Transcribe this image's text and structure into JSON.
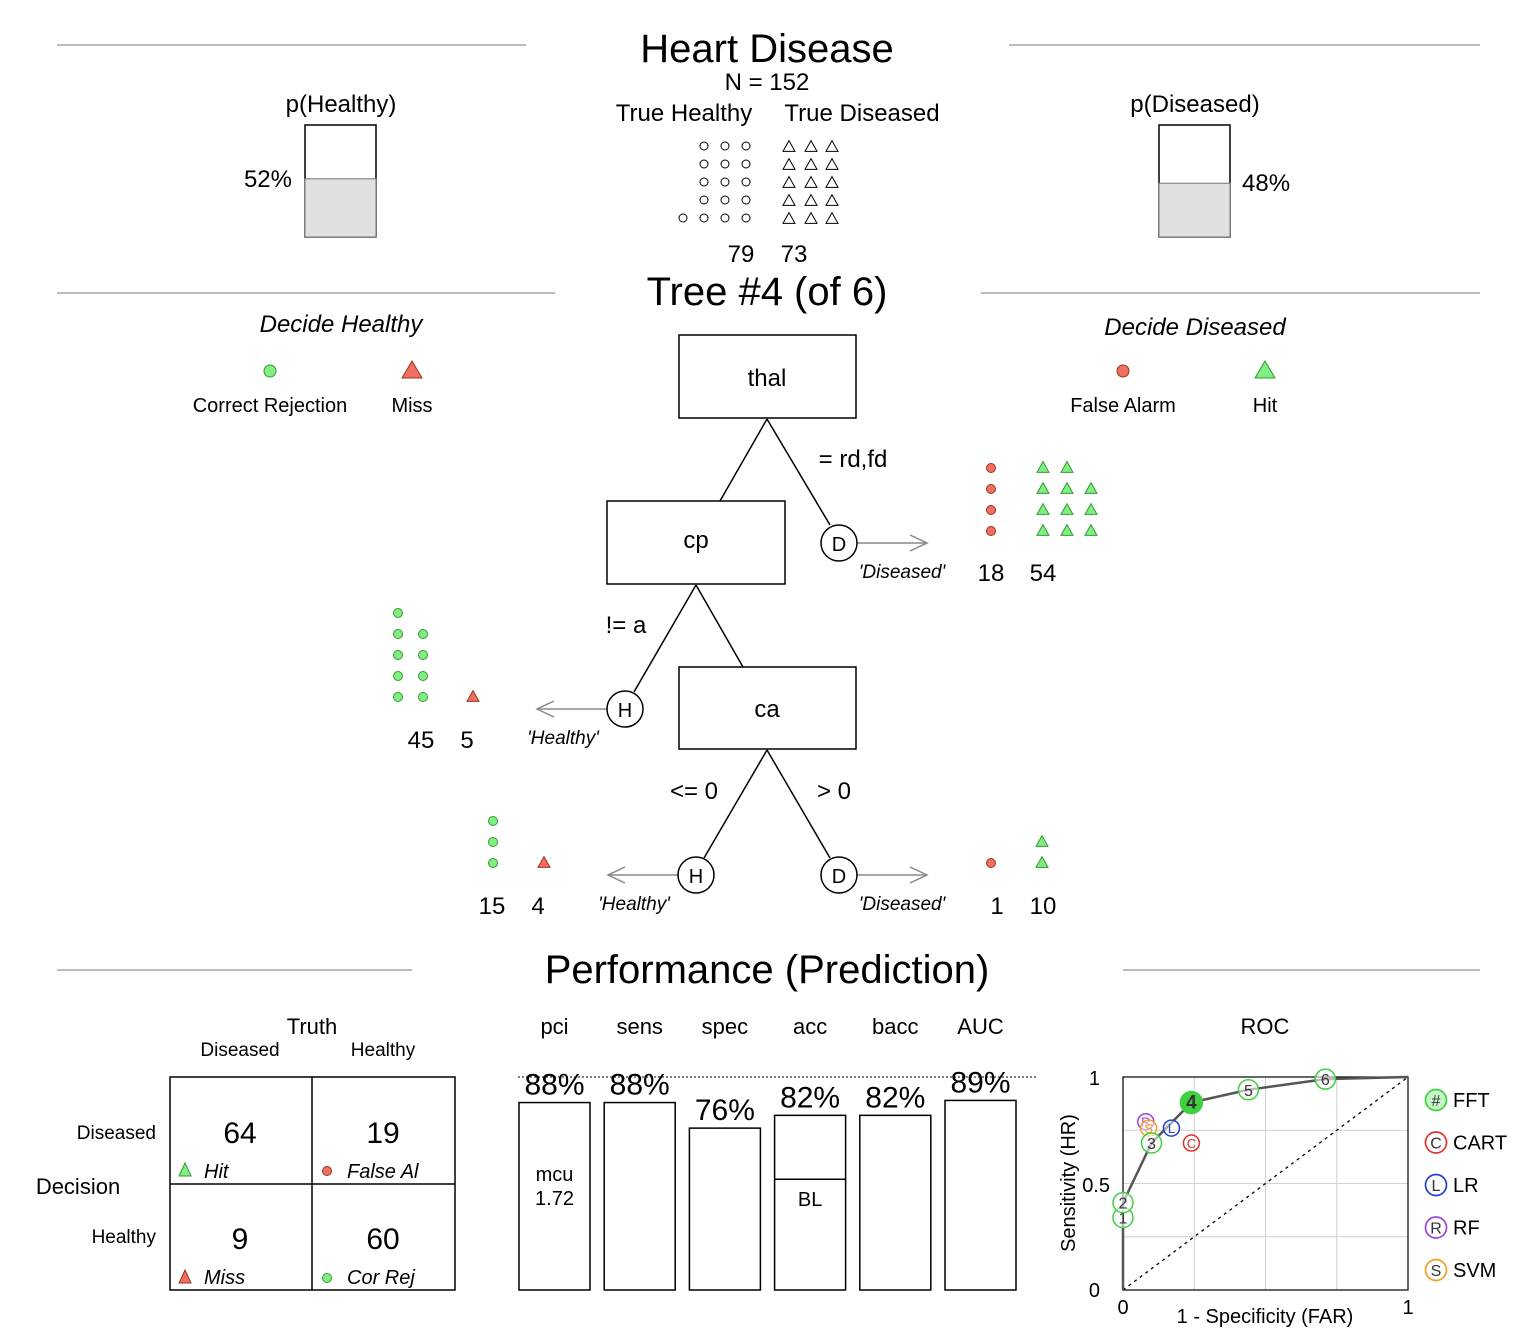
{
  "header": {
    "title": "Heart Disease",
    "n_label": "N = 152",
    "true_healthy_label": "True Healthy",
    "true_diseased_label": "True Diseased",
    "true_healthy_count": "79",
    "true_diseased_count": "73"
  },
  "prior": {
    "healthy": {
      "label": "p(Healthy)",
      "value_text": "52%",
      "fraction": 0.52
    },
    "diseased": {
      "label": "p(Diseased)",
      "value_text": "48%",
      "fraction": 0.48
    }
  },
  "tree": {
    "title": "Tree #4 (of 6)",
    "decide_healthy_label": "Decide Healthy",
    "decide_diseased_label": "Decide Diseased",
    "legend": {
      "correct_rejection": "Correct Rejection",
      "miss": "Miss",
      "false_alarm": "False Alarm",
      "hit": "Hit"
    },
    "nodes": [
      {
        "cue": "thal",
        "branch_label": "= rd,fd",
        "exit": {
          "letter": "D",
          "label": "'Diseased'",
          "left_count": "18",
          "right_count": "54"
        }
      },
      {
        "cue": "cp",
        "branch_label": "!= a",
        "exit": {
          "letter": "H",
          "label": "'Healthy'",
          "left_count": "45",
          "right_count": "5"
        }
      },
      {
        "cue": "ca",
        "left_branch_label": "<= 0",
        "right_branch_label": "> 0",
        "exit_left": {
          "letter": "H",
          "label": "'Healthy'",
          "left_count": "15",
          "right_count": "4"
        },
        "exit_right": {
          "letter": "D",
          "label": "'Diseased'",
          "left_count": "1",
          "right_count": "10"
        }
      }
    ]
  },
  "performance": {
    "title": "Performance (Prediction)",
    "confusion": {
      "truth_label": "Truth",
      "decision_label": "Decision",
      "col_labels": [
        "Diseased",
        "Healthy"
      ],
      "row_labels": [
        "Diseased",
        "Healthy"
      ],
      "cells": [
        {
          "value": "64",
          "label": "Hit"
        },
        {
          "value": "19",
          "label": "False Al"
        },
        {
          "value": "9",
          "label": "Miss"
        },
        {
          "value": "60",
          "label": "Cor Rej"
        }
      ]
    },
    "metrics": [
      {
        "name": "pci",
        "value_text": "88%",
        "value": 0.88
      },
      {
        "name": "sens",
        "value_text": "88%",
        "value": 0.88
      },
      {
        "name": "spec",
        "value_text": "76%",
        "value": 0.76
      },
      {
        "name": "acc",
        "value_text": "82%",
        "value": 0.82
      },
      {
        "name": "bacc",
        "value_text": "82%",
        "value": 0.82
      },
      {
        "name": "AUC",
        "value_text": "89%",
        "value": 0.89
      }
    ],
    "mcu_label": "mcu",
    "mcu_value": "1.72",
    "baseline_label": "BL",
    "accuracy_baseline": 0.52
  },
  "roc": {
    "title": "ROC",
    "xlabel": "1 - Specificity (FAR)",
    "ylabel": "Sensitivity (HR)",
    "x_ticks": [
      "0",
      "1"
    ],
    "y_ticks": [
      "0",
      "0.5",
      "1"
    ],
    "fft_points": [
      {
        "id": "1",
        "far": 0.0,
        "hr": 0.34
      },
      {
        "id": "2",
        "far": 0.0,
        "hr": 0.41
      },
      {
        "id": "3",
        "far": 0.1,
        "hr": 0.69
      },
      {
        "id": "4",
        "far": 0.24,
        "hr": 0.88
      },
      {
        "id": "5",
        "far": 0.44,
        "hr": 0.94
      },
      {
        "id": "6",
        "far": 0.71,
        "hr": 0.99
      }
    ],
    "selected_tree": "4",
    "other_models": [
      {
        "letter": "C",
        "name": "CART",
        "far": 0.24,
        "hr": 0.69,
        "color": "#e03030"
      },
      {
        "letter": "L",
        "name": "LR",
        "far": 0.17,
        "hr": 0.76,
        "color": "#2040d0"
      },
      {
        "letter": "R",
        "name": "RF",
        "far": 0.08,
        "hr": 0.79,
        "color": "#a040e0"
      },
      {
        "letter": "S",
        "name": "SVM",
        "far": 0.09,
        "hr": 0.76,
        "color": "#f0a020"
      }
    ],
    "legend": [
      {
        "symbol": "#",
        "name": "FFT",
        "color": "#40d040"
      },
      {
        "symbol": "C",
        "name": "CART",
        "color": "#e03030"
      },
      {
        "symbol": "L",
        "name": "LR",
        "color": "#2040d0"
      },
      {
        "symbol": "R",
        "name": "RF",
        "color": "#a040e0"
      },
      {
        "symbol": "S",
        "name": "SVM",
        "color": "#f0a020"
      }
    ]
  },
  "colors": {
    "correct_green": "#80ee80",
    "error_red": "#f07060",
    "bar_fill": "#e0e0e0"
  }
}
